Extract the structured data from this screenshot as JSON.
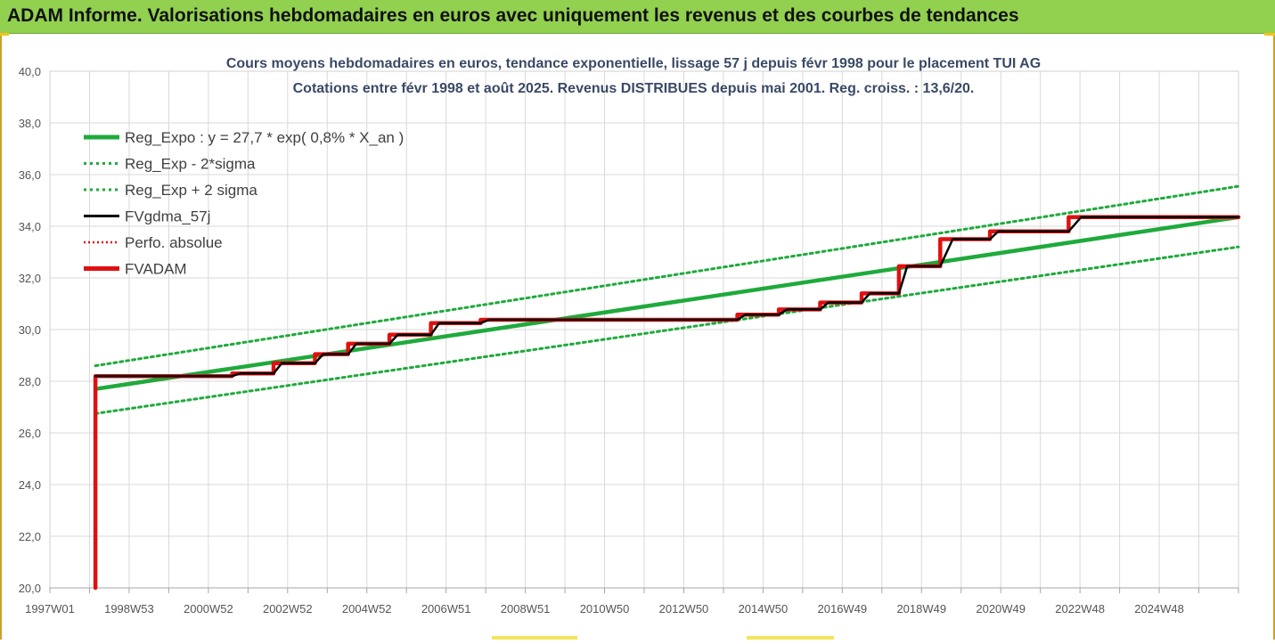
{
  "header": {
    "title": "ADAM Informe. Valorisations hebdomadaires en euros avec uniquement les revenus et des courbes de tendances"
  },
  "chart_data": {
    "type": "line",
    "title_line1": "Cours moyens hebdomadaires en euros, tendance exponentielle, lissage 57 j depuis févr 1998 pour le placement TUI AG",
    "title_line2": "Cotations entre févr 1998 et août 2025. Revenus DISTRIBUES depuis mai 2001. Reg. croiss. : 13,6/20.",
    "ylim": [
      20,
      40
    ],
    "xlim": [
      1997.0,
      2025.7
    ],
    "y_ticks": [
      "20,0",
      "22,0",
      "24,0",
      "26,0",
      "28,0",
      "30,0",
      "32,0",
      "34,0",
      "36,0",
      "38,0",
      "40,0"
    ],
    "x_tick_labels": [
      "1997W01",
      "1998W53",
      "2000W52",
      "2002W52",
      "2004W52",
      "2006W51",
      "2008W51",
      "2010W50",
      "2012W50",
      "2014W50",
      "2016W49",
      "2018W49",
      "2020W49",
      "2022W48",
      "2024W48"
    ],
    "grid": true,
    "legend_position": "top-left",
    "legend": [
      {
        "label": "Reg_Expo : y = 27,7 * exp( 0,8% *  X_an )",
        "color": "#1faa3c",
        "style": "solid-thick"
      },
      {
        "label": "Reg_Exp - 2*sigma",
        "color": "#1faa3c",
        "style": "dotted"
      },
      {
        "label": "Reg_Exp + 2 sigma",
        "color": "#1faa3c",
        "style": "dotted"
      },
      {
        "label": "FVgdma_57j",
        "color": "#000000",
        "style": "solid"
      },
      {
        "label": "Perfo. absolue",
        "color": "#e01010",
        "style": "dotted"
      },
      {
        "label": "FVADAM",
        "color": "#e01010",
        "style": "solid-thick"
      }
    ],
    "series": [
      {
        "name": "Reg_Expo : y = 27,7 * exp( 0,8% *  X_an )",
        "color": "#1faa3c",
        "x": [
          1998.1,
          2025.7
        ],
        "y": [
          27.7,
          34.35
        ]
      },
      {
        "name": "Reg_Exp - 2*sigma",
        "color": "#1faa3c",
        "x": [
          1998.1,
          2025.7
        ],
        "y": [
          26.75,
          33.2
        ]
      },
      {
        "name": "Reg_Exp + 2 sigma",
        "color": "#1faa3c",
        "x": [
          1998.1,
          2025.7
        ],
        "y": [
          28.6,
          35.55
        ]
      },
      {
        "name": "FVADAM",
        "color": "#e01010",
        "x": [
          1998.1,
          1998.1,
          2001.4,
          2001.4,
          2002.4,
          2002.4,
          2003.4,
          2003.4,
          2004.2,
          2004.2,
          2005.2,
          2005.2,
          2006.2,
          2006.2,
          2007.4,
          2007.4,
          2013.6,
          2013.6,
          2014.6,
          2014.6,
          2015.6,
          2015.6,
          2016.6,
          2016.6,
          2017.5,
          2017.5,
          2018.5,
          2018.5,
          2019.7,
          2019.7,
          2021.6,
          2021.6,
          2025.7
        ],
        "y": [
          20.0,
          28.2,
          28.2,
          28.3,
          28.3,
          28.7,
          28.7,
          29.05,
          29.05,
          29.45,
          29.45,
          29.8,
          29.8,
          30.25,
          30.25,
          30.38,
          30.38,
          30.58,
          30.58,
          30.78,
          30.78,
          31.05,
          31.05,
          31.4,
          31.4,
          32.45,
          32.45,
          33.5,
          33.5,
          33.8,
          33.8,
          34.35,
          34.35
        ]
      },
      {
        "name": "FVgdma_57j",
        "color": "#000000",
        "x": [
          1998.1,
          2001.4,
          2001.6,
          2002.4,
          2002.6,
          2003.4,
          2003.6,
          2004.2,
          2004.4,
          2005.2,
          2005.4,
          2006.2,
          2006.4,
          2007.4,
          2007.6,
          2013.6,
          2013.8,
          2014.6,
          2014.8,
          2015.6,
          2015.8,
          2016.6,
          2016.8,
          2017.5,
          2017.7,
          2018.5,
          2018.8,
          2019.7,
          2019.9,
          2021.6,
          2021.9,
          2025.7
        ],
        "y": [
          28.2,
          28.2,
          28.3,
          28.3,
          28.7,
          28.7,
          29.05,
          29.05,
          29.45,
          29.45,
          29.8,
          29.8,
          30.25,
          30.25,
          30.38,
          30.38,
          30.58,
          30.58,
          30.78,
          30.78,
          31.05,
          31.05,
          31.4,
          31.4,
          32.45,
          32.45,
          33.5,
          33.5,
          33.8,
          33.8,
          34.35,
          34.35
        ]
      }
    ]
  }
}
